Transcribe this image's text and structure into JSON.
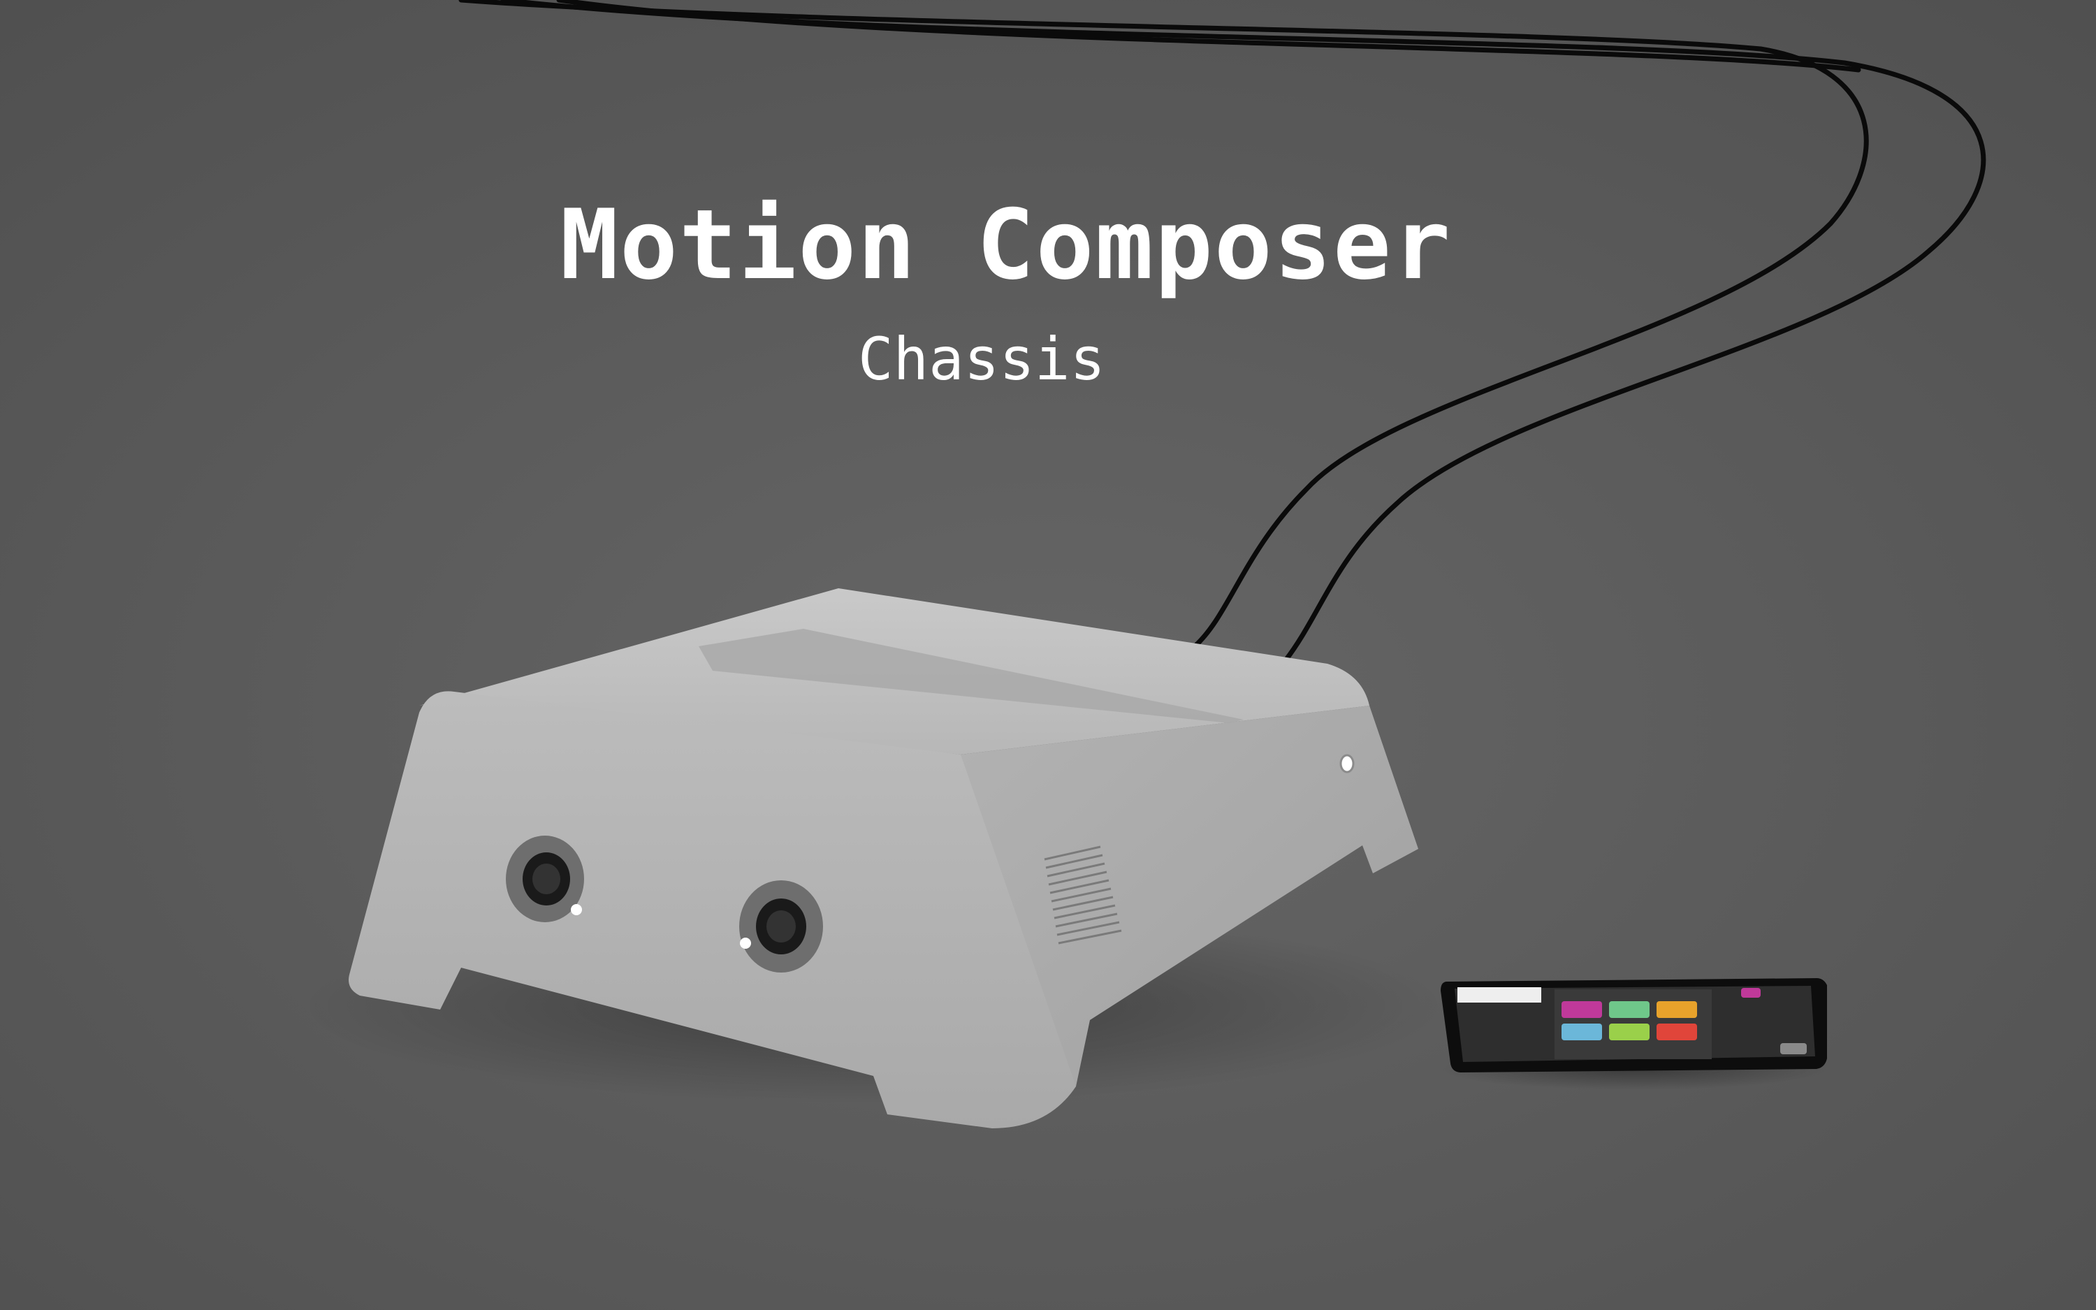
{
  "title": "Motion Composer",
  "subtitle": "Chassis",
  "colors": {
    "background": "#5a5a5a",
    "chassis": "#bdbdbd",
    "cable": "#0a0a0a",
    "title_text": "#ffffff"
  },
  "tablet": {
    "tiles": [
      {
        "color": "#c0399a"
      },
      {
        "color": "#6fc78a"
      },
      {
        "color": "#e8a22b"
      },
      {
        "color": "#6bb7d9"
      },
      {
        "color": "#9ad04a"
      },
      {
        "color": "#e0453a"
      }
    ]
  }
}
